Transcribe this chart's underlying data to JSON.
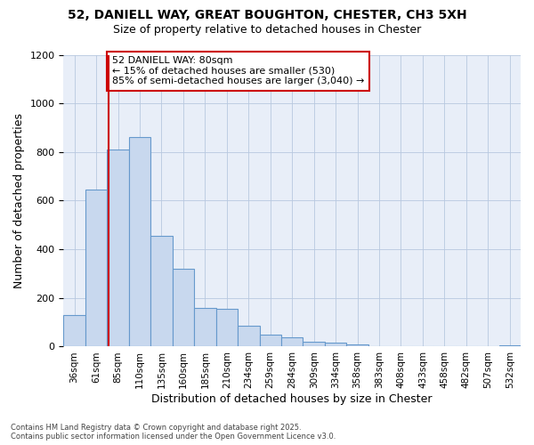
{
  "title_line1": "52, DANIELL WAY, GREAT BOUGHTON, CHESTER, CH3 5XH",
  "title_line2": "Size of property relative to detached houses in Chester",
  "xlabel": "Distribution of detached houses by size in Chester",
  "ylabel": "Number of detached properties",
  "bar_color": "#c8d8ee",
  "bar_edge_color": "#6699cc",
  "categories": [
    "36sqm",
    "61sqm",
    "85sqm",
    "110sqm",
    "135sqm",
    "160sqm",
    "185sqm",
    "210sqm",
    "234sqm",
    "259sqm",
    "284sqm",
    "309sqm",
    "334sqm",
    "358sqm",
    "383sqm",
    "408sqm",
    "433sqm",
    "458sqm",
    "482sqm",
    "507sqm",
    "532sqm"
  ],
  "values": [
    130,
    645,
    810,
    860,
    455,
    320,
    160,
    155,
    85,
    50,
    40,
    20,
    15,
    10,
    0,
    0,
    0,
    0,
    0,
    0,
    5
  ],
  "vline_position": 1.58,
  "vline_color": "#cc0000",
  "annotation_text": "52 DANIELL WAY: 80sqm\n← 15% of detached houses are smaller (530)\n85% of semi-detached houses are larger (3,040) →",
  "annotation_box_edgecolor": "#cc0000",
  "ylim_max": 1200,
  "yticks": [
    0,
    200,
    400,
    600,
    800,
    1000,
    1200
  ],
  "grid_color": "#b8c8e0",
  "background_color": "#e8eef8",
  "footer": "Contains HM Land Registry data © Crown copyright and database right 2025.\nContains public sector information licensed under the Open Government Licence v3.0."
}
